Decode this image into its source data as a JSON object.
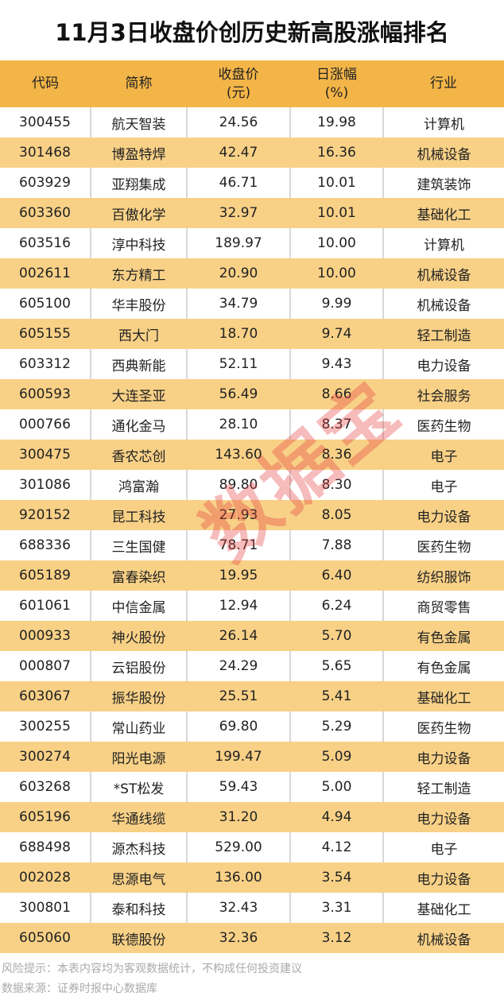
{
  "title": "11月3日收盘价创历史新高股涨幅排名",
  "columns": [
    "代码",
    "简称",
    "收盘价\n(元)",
    "日涨幅\n(%)",
    "行业"
  ],
  "rows": [
    [
      "300455",
      "航天智装",
      "24.56",
      "19.98",
      "计算机"
    ],
    [
      "301468",
      "博盈特焊",
      "42.47",
      "16.36",
      "机械设备"
    ],
    [
      "603929",
      "亚翔集成",
      "46.71",
      "10.01",
      "建筑装饰"
    ],
    [
      "603360",
      "百傲化学",
      "32.97",
      "10.01",
      "基础化工"
    ],
    [
      "603516",
      "淳中科技",
      "189.97",
      "10.00",
      "计算机"
    ],
    [
      "002611",
      "东方精工",
      "20.90",
      "10.00",
      "机械设备"
    ],
    [
      "605100",
      "华丰股份",
      "34.79",
      "9.99",
      "机械设备"
    ],
    [
      "605155",
      "西大门",
      "18.70",
      "9.74",
      "轻工制造"
    ],
    [
      "603312",
      "西典新能",
      "52.11",
      "9.43",
      "电力设备"
    ],
    [
      "600593",
      "大连圣亚",
      "56.49",
      "8.66",
      "社会服务"
    ],
    [
      "000766",
      "通化金马",
      "28.10",
      "8.37",
      "医药生物"
    ],
    [
      "300475",
      "香农芯创",
      "143.60",
      "8.36",
      "电子"
    ],
    [
      "301086",
      "鸿富瀚",
      "89.80",
      "8.30",
      "电子"
    ],
    [
      "920152",
      "昆工科技",
      "27.93",
      "8.05",
      "电力设备"
    ],
    [
      "688336",
      "三生国健",
      "78.71",
      "7.88",
      "医药生物"
    ],
    [
      "605189",
      "富春染织",
      "19.95",
      "6.40",
      "纺织服饰"
    ],
    [
      "601061",
      "中信金属",
      "12.94",
      "6.24",
      "商贸零售"
    ],
    [
      "000933",
      "神火股份",
      "26.14",
      "5.70",
      "有色金属"
    ],
    [
      "000807",
      "云铝股份",
      "24.29",
      "5.65",
      "有色金属"
    ],
    [
      "603067",
      "振华股份",
      "25.51",
      "5.41",
      "基础化工"
    ],
    [
      "300255",
      "常山药业",
      "69.80",
      "5.29",
      "医药生物"
    ],
    [
      "300274",
      "阳光电源",
      "199.47",
      "5.09",
      "电力设备"
    ],
    [
      "603268",
      "*ST松发",
      "59.43",
      "5.00",
      "轻工制造"
    ],
    [
      "605196",
      "华通线缆",
      "31.20",
      "4.94",
      "电力设备"
    ],
    [
      "688498",
      "源杰科技",
      "529.00",
      "4.12",
      "电子"
    ],
    [
      "002028",
      "思源电气",
      "136.00",
      "3.54",
      "电力设备"
    ],
    [
      "300801",
      "泰和科技",
      "32.43",
      "3.31",
      "基础化工"
    ],
    [
      "605060",
      "联德股份",
      "32.36",
      "3.12",
      "机械设备"
    ]
  ],
  "footer": {
    "risk": "风险提示：本表内容均为客观数据统计，不构成任何投资建议",
    "source": "数据来源：证券时报中心数据库"
  },
  "watermark": "数据宝",
  "colors": {
    "header": "#f3b548",
    "alt_row": "#f8d187"
  }
}
